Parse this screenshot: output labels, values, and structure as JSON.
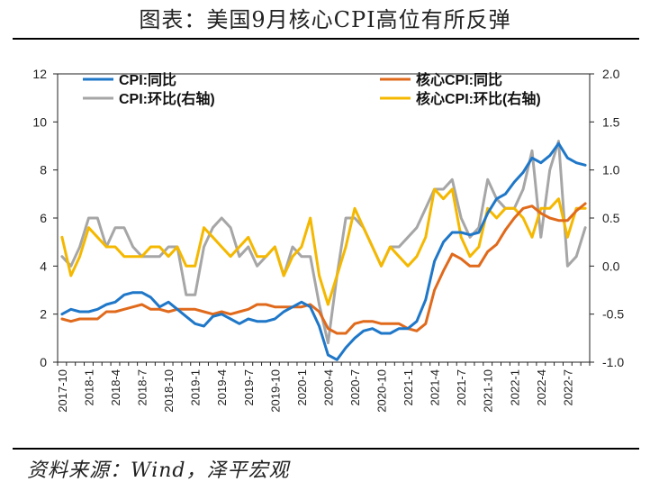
{
  "title": "图表：美国9月核心CPI高位有所反弹",
  "source": "资料来源：Wind，泽平宏观",
  "colors": {
    "cpi_yoy": "#1f77c8",
    "core_yoy": "#e06a1c",
    "cpi_mom": "#a6a6a6",
    "core_mom": "#f5b800"
  },
  "chart_data": {
    "type": "line",
    "x": [
      "2017-10",
      "2017-11",
      "2017-12",
      "2018-1",
      "2018-2",
      "2018-3",
      "2018-4",
      "2018-5",
      "2018-6",
      "2018-7",
      "2018-8",
      "2018-9",
      "2018-10",
      "2018-11",
      "2018-12",
      "2019-1",
      "2019-2",
      "2019-3",
      "2019-4",
      "2019-5",
      "2019-6",
      "2019-7",
      "2019-8",
      "2019-9",
      "2019-10",
      "2019-11",
      "2019-12",
      "2020-1",
      "2020-2",
      "2020-3",
      "2020-4",
      "2020-5",
      "2020-6",
      "2020-7",
      "2020-8",
      "2020-9",
      "2020-10",
      "2020-11",
      "2020-12",
      "2021-1",
      "2021-2",
      "2021-3",
      "2021-4",
      "2021-5",
      "2021-6",
      "2021-7",
      "2021-8",
      "2021-9",
      "2021-10",
      "2021-11",
      "2021-12",
      "2022-1",
      "2022-2",
      "2022-3",
      "2022-4",
      "2022-5",
      "2022-6",
      "2022-7",
      "2022-8",
      "2022-9"
    ],
    "x_tick_labels": [
      "2017-10",
      "2018-1",
      "2018-4",
      "2018-7",
      "2018-10",
      "2019-1",
      "2019-4",
      "2019-7",
      "2019-10",
      "2020-1",
      "2020-4",
      "2020-7",
      "2020-10",
      "2021-1",
      "2021-4",
      "2021-7",
      "2021-10",
      "2022-1",
      "2022-4",
      "2022-7"
    ],
    "y_left": {
      "lim": [
        0,
        12
      ],
      "ticks": [
        0,
        2,
        4,
        6,
        8,
        10,
        12
      ]
    },
    "y_right": {
      "lim": [
        -1.0,
        2.0
      ],
      "ticks": [
        "-1.0",
        "-0.5",
        "0.0",
        "0.5",
        "1.0",
        "1.5",
        "2.0"
      ]
    },
    "legend_placement": "top",
    "series": [
      {
        "name": "CPI:同比",
        "axis": "left",
        "color": "#1f77c8",
        "values": [
          2.0,
          2.2,
          2.1,
          2.1,
          2.2,
          2.4,
          2.5,
          2.8,
          2.9,
          2.9,
          2.7,
          2.3,
          2.5,
          2.2,
          1.9,
          1.6,
          1.5,
          1.9,
          2.0,
          1.8,
          1.6,
          1.8,
          1.7,
          1.7,
          1.8,
          2.1,
          2.3,
          2.5,
          2.3,
          1.5,
          0.3,
          0.1,
          0.6,
          1.0,
          1.3,
          1.4,
          1.2,
          1.2,
          1.4,
          1.4,
          1.7,
          2.6,
          4.2,
          5.0,
          5.4,
          5.4,
          5.3,
          5.4,
          6.2,
          6.8,
          7.0,
          7.5,
          7.9,
          8.5,
          8.3,
          8.6,
          9.1,
          8.5,
          8.3,
          8.2
        ]
      },
      {
        "name": "核心CPI:同比",
        "axis": "left",
        "color": "#e06a1c",
        "values": [
          1.8,
          1.7,
          1.8,
          1.8,
          1.8,
          2.1,
          2.1,
          2.2,
          2.3,
          2.4,
          2.2,
          2.2,
          2.1,
          2.2,
          2.2,
          2.2,
          2.1,
          2.0,
          2.1,
          2.0,
          2.1,
          2.2,
          2.4,
          2.4,
          2.3,
          2.3,
          2.3,
          2.3,
          2.4,
          2.1,
          1.4,
          1.2,
          1.2,
          1.6,
          1.7,
          1.7,
          1.6,
          1.6,
          1.6,
          1.4,
          1.3,
          1.6,
          3.0,
          3.8,
          4.5,
          4.3,
          4.0,
          4.0,
          4.6,
          4.9,
          5.5,
          6.0,
          6.4,
          6.5,
          6.2,
          6.0,
          5.9,
          5.9,
          6.3,
          6.6
        ]
      },
      {
        "name": "CPI:环比(右轴)",
        "axis": "right",
        "color": "#a6a6a6",
        "values": [
          0.1,
          0.0,
          0.2,
          0.5,
          0.5,
          0.2,
          0.4,
          0.4,
          0.2,
          0.1,
          0.1,
          0.1,
          0.2,
          0.2,
          -0.3,
          -0.3,
          0.2,
          0.4,
          0.5,
          0.4,
          0.1,
          0.2,
          0.0,
          0.1,
          0.2,
          -0.1,
          0.2,
          0.1,
          0.1,
          -0.4,
          -0.8,
          -0.1,
          0.5,
          0.5,
          0.4,
          0.2,
          0.0,
          0.2,
          0.2,
          0.3,
          0.4,
          0.6,
          0.8,
          0.8,
          0.9,
          0.5,
          0.3,
          0.4,
          0.9,
          0.7,
          0.6,
          0.6,
          0.8,
          1.2,
          0.3,
          1.0,
          1.3,
          0.0,
          0.1,
          0.4
        ]
      },
      {
        "name": "核心CPI:环比(右轴)",
        "axis": "right",
        "color": "#f5b800",
        "values": [
          0.3,
          -0.1,
          0.1,
          0.4,
          0.3,
          0.2,
          0.2,
          0.1,
          0.1,
          0.1,
          0.2,
          0.2,
          0.1,
          0.2,
          0.0,
          0.0,
          0.4,
          0.3,
          0.2,
          0.1,
          0.2,
          0.3,
          0.1,
          0.1,
          0.2,
          -0.1,
          0.1,
          0.2,
          0.5,
          -0.1,
          -0.4,
          -0.1,
          0.2,
          0.6,
          0.4,
          0.2,
          0.0,
          0.2,
          0.1,
          0.0,
          0.1,
          0.3,
          0.8,
          0.7,
          0.8,
          0.3,
          0.1,
          0.2,
          0.6,
          0.5,
          0.6,
          0.6,
          0.5,
          0.3,
          0.6,
          0.6,
          0.7,
          0.3,
          0.6,
          0.6
        ]
      }
    ]
  }
}
